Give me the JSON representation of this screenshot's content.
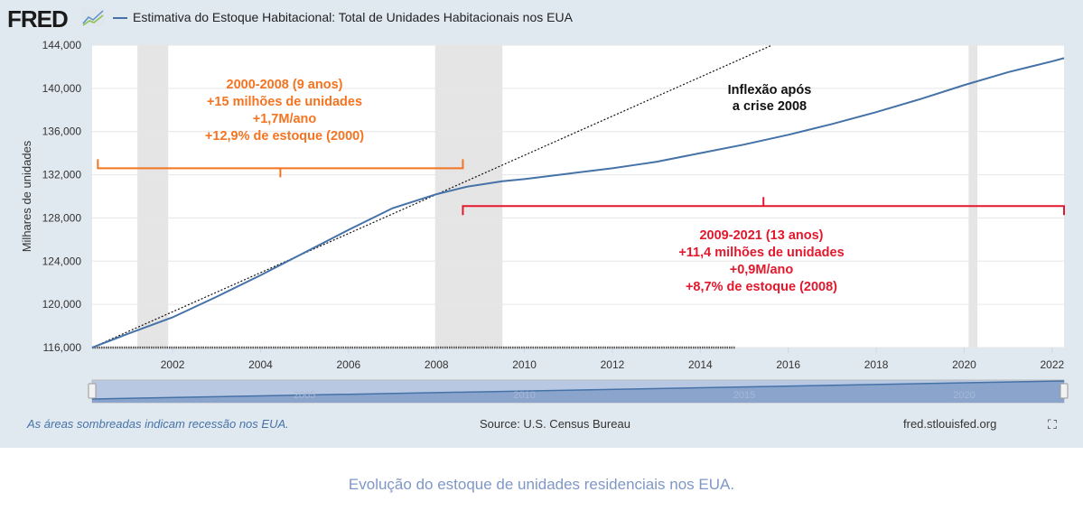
{
  "header": {
    "logo": "FRED",
    "legend": "Estimativa do Estoque Habitacional: Total de Unidades Habitacionais nos EUA"
  },
  "footer": {
    "recession_note": "As áreas sombreadas indicam recessão nos EUA.",
    "source": "Source: U.S. Census Bureau",
    "site": "fred.stlouisfed.org",
    "fullscreen_icon": "fullscreen-icon"
  },
  "caption": "Evolução do estoque de unidades residenciais nos EUA.",
  "chart_data": {
    "type": "line",
    "ylabel": "Milhares de unidades",
    "ylim": [
      116000,
      144000
    ],
    "xlim": [
      2000.17,
      2022.27
    ],
    "yticks": [
      "116,000",
      "120,000",
      "124,000",
      "128,000",
      "132,000",
      "136,000",
      "140,000",
      "144,000"
    ],
    "xticks": [
      "2002",
      "2004",
      "2006",
      "2008",
      "2010",
      "2012",
      "2014",
      "2016",
      "2018",
      "2020",
      "2022"
    ],
    "navigator_ticks": [
      "2005",
      "2010",
      "2015",
      "2020"
    ],
    "grid": true,
    "colors": {
      "series": "#4572a7",
      "recession": "#e5e5e5",
      "orange": "#f47421",
      "red": "#e3182d"
    },
    "recessions": [
      [
        2001.2,
        2001.9
      ],
      [
        2007.97,
        2009.5
      ],
      [
        2020.1,
        2020.3
      ]
    ],
    "series": [
      {
        "x": [
          2000.17,
          2001,
          2002,
          2003,
          2004,
          2005,
          2006,
          2007,
          2008,
          2008.7,
          2009.5,
          2010,
          2011,
          2012,
          2012.5,
          2013,
          2014,
          2015,
          2016,
          2017,
          2018,
          2019,
          2020,
          2021,
          2022,
          2022.27
        ],
        "y": [
          116000,
          117300,
          118800,
          120700,
          122700,
          124800,
          126900,
          128900,
          130200,
          130900,
          131400,
          131600,
          132100,
          132600,
          132900,
          133200,
          134000,
          134800,
          135700,
          136700,
          137800,
          139000,
          140300,
          141500,
          142500,
          142800
        ]
      }
    ],
    "trend": {
      "x": [
        2000.17,
        2015.63
      ],
      "y": [
        116000,
        144000
      ]
    },
    "baseline": {
      "x": [
        2000.17,
        2014.8
      ],
      "y": [
        116000,
        116000
      ]
    },
    "annotations": [
      {
        "name": "period-2000-2008",
        "lines": [
          "2000-2008 (9 anos)",
          "+15 milhões de unidades",
          "+1,7M/ano",
          "+12,9% de estoque (2000)"
        ],
        "color": "orange",
        "bracket": [
          2000.3,
          2008.6
        ],
        "level": 132600
      },
      {
        "name": "period-2009-2021",
        "lines": [
          "2009-2021 (13 anos)",
          "+11,4 milhões de unidades",
          "+0,9M/ano",
          "+8,7% de estoque (2008)"
        ],
        "color": "red",
        "bracket": [
          2008.6,
          2022.27
        ],
        "level": 129100
      },
      {
        "name": "inflection",
        "lines": [
          "Inflexão após",
          "a crise 2008"
        ],
        "color": "black"
      }
    ]
  }
}
